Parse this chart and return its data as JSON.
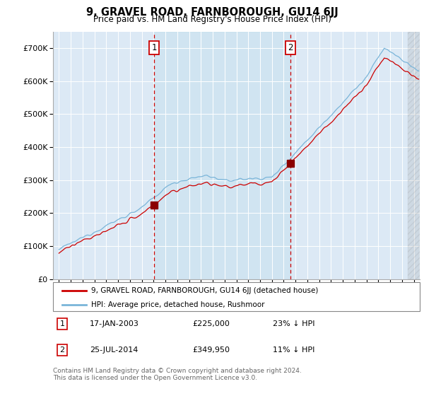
{
  "title": "9, GRAVEL ROAD, FARNBOROUGH, GU14 6JJ",
  "subtitle": "Price paid vs. HM Land Registry's House Price Index (HPI)",
  "sale1_date": "17-JAN-2003",
  "sale1_price": 225000,
  "sale1_label": "23% ↓ HPI",
  "sale1_x": 2003.04,
  "sale2_date": "25-JUL-2014",
  "sale2_price": 349950,
  "sale2_label": "11% ↓ HPI",
  "sale2_x": 2014.56,
  "legend_line1": "9, GRAVEL ROAD, FARNBOROUGH, GU14 6JJ (detached house)",
  "legend_line2": "HPI: Average price, detached house, Rushmoor",
  "footnote": "Contains HM Land Registry data © Crown copyright and database right 2024.\nThis data is licensed under the Open Government Licence v3.0.",
  "hpi_color": "#7ab5d9",
  "price_color": "#cc0000",
  "background_color": "#dce9f5",
  "highlight_color": "#cce0f0",
  "ylim": [
    0,
    750000
  ],
  "yticks": [
    0,
    100000,
    200000,
    300000,
    400000,
    500000,
    600000,
    700000
  ],
  "xlim_start": 1994.5,
  "xlim_end": 2025.5
}
